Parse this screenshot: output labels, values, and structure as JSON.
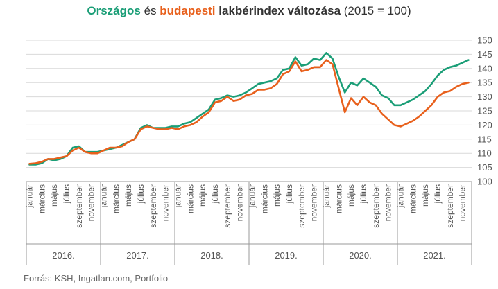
{
  "title": {
    "part1": "Országos",
    "part2": " és ",
    "part3": "budapesti",
    "part4": " lakbérindex változása ",
    "part5": "(2015 = 100)"
  },
  "source": "Forrás: KSH, Ingatlan.com, Portfolio",
  "colors": {
    "national": "#1b9e77",
    "budapest": "#e8601c",
    "grid": "#d9d9d9",
    "axis": "#999999",
    "text": "#555555"
  },
  "chart_data": {
    "type": "line",
    "ylim": [
      100,
      150
    ],
    "yticks": [
      100,
      105,
      110,
      115,
      120,
      125,
      130,
      135,
      140,
      145,
      150
    ],
    "y_axis_position": "right",
    "grid": "horizontal",
    "month_labels": [
      "január",
      "március",
      "május",
      "július",
      "szeptember",
      "november"
    ],
    "years": [
      "2016.",
      "2017.",
      "2018.",
      "2019.",
      "2020.",
      "2021."
    ],
    "series": [
      {
        "key": "national",
        "values": [
          106,
          106,
          106.5,
          108,
          107.5,
          108,
          109,
          112,
          112.5,
          110.5,
          110.5,
          110.5,
          111,
          111.5,
          112,
          113,
          114,
          115,
          119,
          120,
          119,
          119,
          119,
          119.5,
          119.5,
          120.5,
          121,
          122.5,
          124,
          125.5,
          129,
          129.5,
          130.5,
          130,
          130.5,
          131.5,
          133,
          134.5,
          135,
          135.5,
          136.5,
          139.5,
          140,
          144,
          141,
          141.5,
          143.5,
          143,
          145.5,
          143.5,
          137,
          131.5,
          135,
          134,
          136.5,
          135,
          133.5,
          130.5,
          129.5,
          127,
          127,
          128,
          129,
          130.5,
          132,
          134.5,
          137.5,
          139.5,
          140.5,
          141,
          142,
          143
        ]
      },
      {
        "key": "budapest",
        "values": [
          106.3,
          106.5,
          107,
          108,
          108,
          108.5,
          109,
          111,
          112,
          110.5,
          110,
          110,
          111,
          112,
          112,
          112.5,
          114,
          115,
          118.5,
          119.5,
          119,
          118.5,
          118.5,
          119,
          118.5,
          119.5,
          120,
          121,
          123,
          124.5,
          128,
          128.5,
          130,
          128.5,
          129,
          130.5,
          131,
          132.5,
          132.5,
          133,
          134.5,
          138,
          139,
          142.5,
          139,
          139.5,
          140.5,
          140.5,
          143,
          141.5,
          133,
          124.5,
          129.5,
          127,
          130,
          128,
          127,
          124,
          122,
          120,
          119.5,
          120.5,
          121.5,
          123,
          125,
          127,
          130,
          131.5,
          132,
          133.5,
          134.5,
          135
        ]
      }
    ]
  }
}
